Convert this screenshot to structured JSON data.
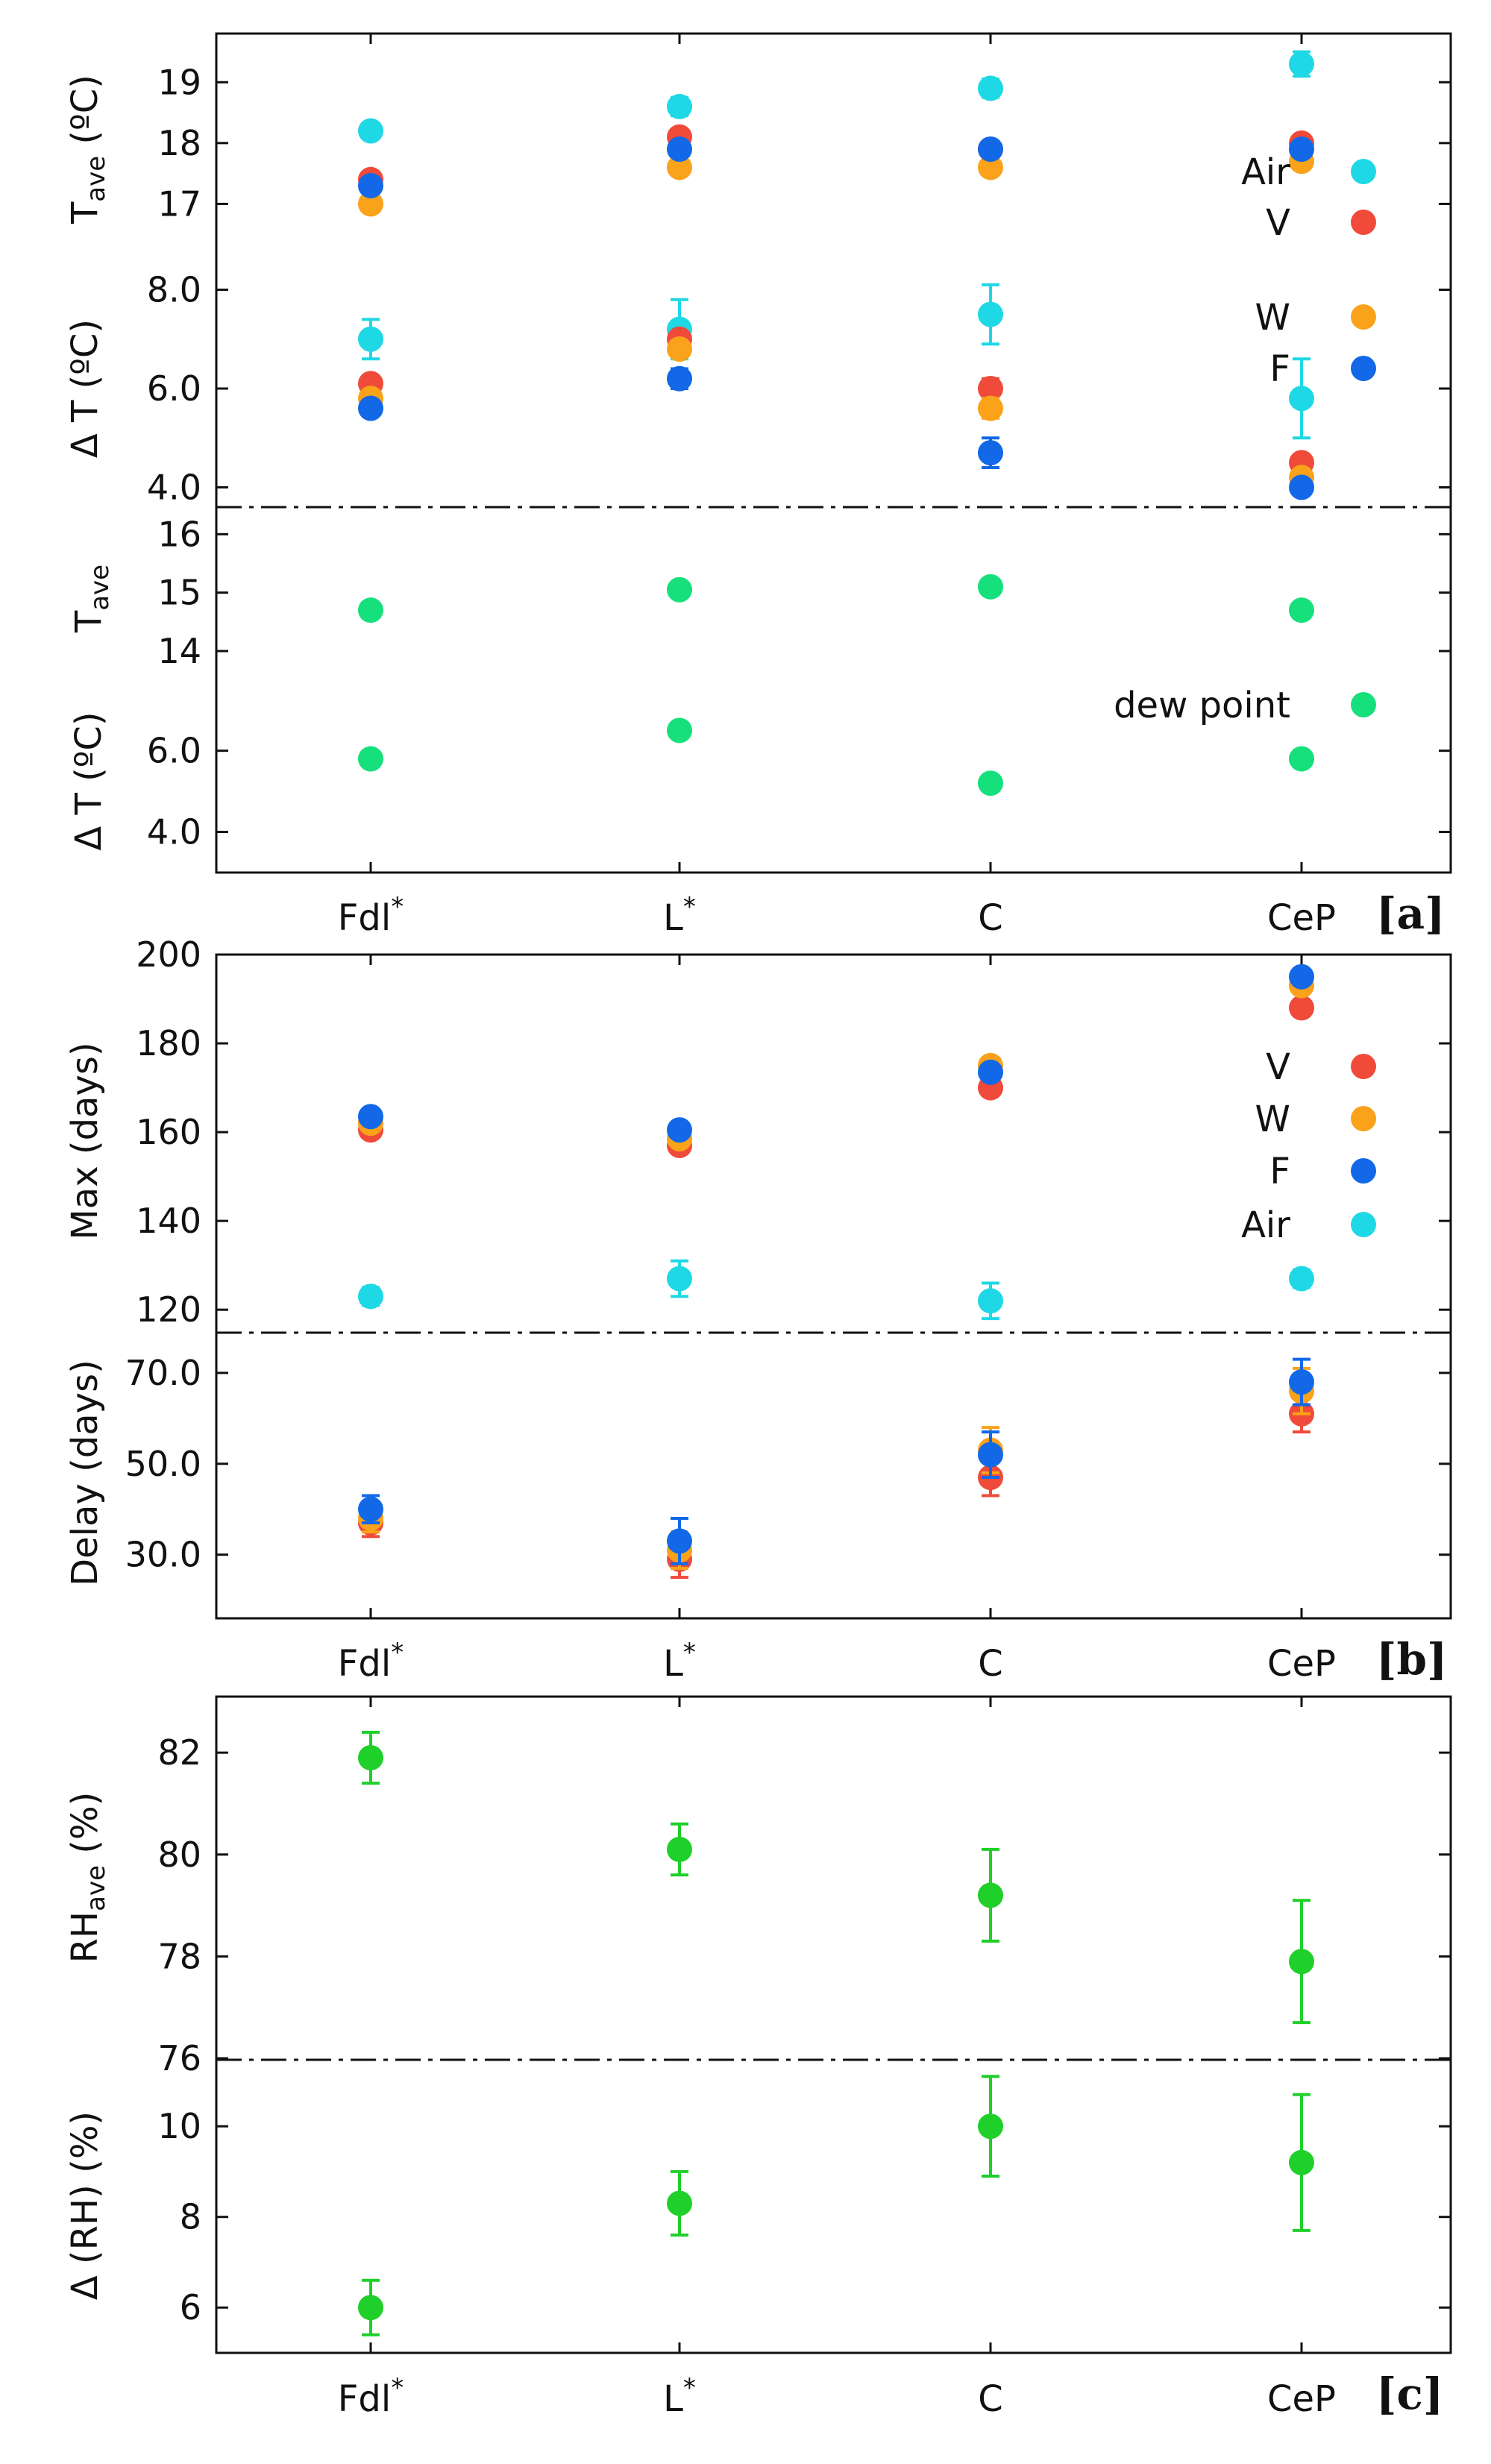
{
  "chart_data": [
    {
      "panel": "a",
      "type": "scatter",
      "categories": [
        "Fdl*",
        "L*",
        "C",
        "CeP"
      ],
      "panel_label": "[a]",
      "subplots": [
        {
          "id": "a_tave",
          "ylabel": "T",
          "ylabel_sub": "ave",
          "ylabel_unit": " (ºC)",
          "ylim": [
            16.0,
            19.8
          ],
          "yticks": [
            "17",
            "18",
            "19"
          ],
          "series": [
            {
              "name": "Air",
              "color": "#1fd8e6",
              "values": [
                18.2,
                18.6,
                18.9,
                19.3
              ],
              "err": [
                0.05,
                0.15,
                0.15,
                0.2
              ]
            },
            {
              "name": "V",
              "color": "#f04a3a",
              "values": [
                17.4,
                18.1,
                17.9,
                18.0
              ],
              "err": [
                0,
                0,
                0,
                0
              ]
            },
            {
              "name": "W",
              "color": "#f9a21a",
              "values": [
                17.0,
                17.6,
                17.6,
                17.7
              ],
              "err": [
                0,
                0,
                0,
                0
              ]
            },
            {
              "name": "F",
              "color": "#1268e6",
              "values": [
                17.3,
                17.9,
                17.9,
                17.9
              ],
              "err": [
                0,
                0,
                0,
                0
              ]
            }
          ]
        },
        {
          "id": "a_dt",
          "ylabel": "Δ T (ºC)",
          "ylim": [
            3.6,
            8.4
          ],
          "yticks": [
            "4.0",
            "6.0",
            "8.0"
          ],
          "series": [
            {
              "name": "Air",
              "color": "#1fd8e6",
              "values": [
                7.0,
                7.2,
                7.5,
                5.8
              ],
              "err": [
                0.4,
                0.6,
                0.6,
                0.8
              ]
            },
            {
              "name": "V",
              "color": "#f04a3a",
              "values": [
                6.1,
                7.0,
                6.0,
                4.5
              ],
              "err": [
                0,
                0,
                0.2,
                0
              ]
            },
            {
              "name": "W",
              "color": "#f9a21a",
              "values": [
                5.8,
                6.8,
                5.6,
                4.2
              ],
              "err": [
                0,
                0,
                0.2,
                0
              ]
            },
            {
              "name": "F",
              "color": "#1268e6",
              "values": [
                5.6,
                6.2,
                4.7,
                4.0
              ],
              "err": [
                0,
                0.2,
                0.3,
                0
              ]
            }
          ]
        },
        {
          "id": "a_dew_tave",
          "ylabel": "T",
          "ylabel_sub": "ave",
          "ylim": [
            13.4,
            16.4
          ],
          "yticks": [
            "14",
            "15",
            "16"
          ],
          "series": [
            {
              "name": "dew point",
              "color": "#16e07c",
              "values": [
                14.7,
                15.05,
                15.1,
                14.7
              ],
              "err": [
                0,
                0,
                0,
                0
              ]
            }
          ]
        },
        {
          "id": "a_dew_dt",
          "ylabel": "Δ T (ºC)",
          "ylim": [
            3.0,
            7.5
          ],
          "yticks": [
            "4.0",
            "6.0"
          ],
          "series": [
            {
              "name": "dew point",
              "color": "#16e07c",
              "values": [
                5.8,
                6.5,
                5.2,
                5.8
              ],
              "err": [
                0,
                0,
                0,
                0
              ]
            }
          ]
        }
      ],
      "legend": {
        "top": [
          "Air",
          "V"
        ],
        "middle": [
          "W",
          "F"
        ],
        "bottom": [
          "dew point"
        ]
      }
    },
    {
      "panel": "b",
      "type": "scatter",
      "categories": [
        "Fdl*",
        "L*",
        "C",
        "CeP"
      ],
      "panel_label": "[b]",
      "subplots": [
        {
          "id": "b_max",
          "ylabel": "Max (days)",
          "ylim": [
            116,
            200
          ],
          "yticks": [
            "120",
            "140",
            "160",
            "180",
            "200"
          ],
          "series": [
            {
              "name": "V",
              "color": "#f04a3a",
              "values": [
                160.5,
                157,
                170,
                188
              ],
              "err": [
                0,
                0,
                0,
                0
              ]
            },
            {
              "name": "W",
              "color": "#f9a21a",
              "values": [
                162,
                158.5,
                175,
                193
              ],
              "err": [
                0,
                0,
                1.5,
                0
              ]
            },
            {
              "name": "F",
              "color": "#1268e6",
              "values": [
                163.5,
                160.5,
                173.5,
                195
              ],
              "err": [
                0,
                0,
                0,
                0
              ]
            },
            {
              "name": "Air",
              "color": "#1fd8e6",
              "values": [
                123,
                127,
                122,
                127
              ],
              "err": [
                2,
                4,
                4,
                2
              ]
            }
          ]
        },
        {
          "id": "b_delay",
          "ylabel": "Delay (days)",
          "ylim": [
            16,
            80
          ],
          "yticks": [
            "30.0",
            "50.0",
            "70.0"
          ],
          "series": [
            {
              "name": "V",
              "color": "#f04a3a",
              "values": [
                37,
                29,
                47,
                61
              ],
              "err": [
                3,
                4,
                4,
                4
              ]
            },
            {
              "name": "W",
              "color": "#f9a21a",
              "values": [
                38,
                31,
                53,
                66
              ],
              "err": [
                3,
                4,
                5,
                5
              ]
            },
            {
              "name": "F",
              "color": "#1268e6",
              "values": [
                40,
                33,
                52,
                68
              ],
              "err": [
                3,
                5,
                5,
                5
              ]
            }
          ]
        }
      ],
      "legend": [
        "V",
        "W",
        "F",
        "Air"
      ]
    },
    {
      "panel": "c",
      "type": "scatter",
      "categories": [
        "Fdl*",
        "L*",
        "C",
        "CeP"
      ],
      "panel_label": "[c]",
      "subplots": [
        {
          "id": "c_rh",
          "ylabel": "RH",
          "ylabel_sub": "ave",
          "ylabel_unit": " (%)",
          "ylim": [
            76,
            83.1
          ],
          "yticks": [
            "76",
            "78",
            "80",
            "82"
          ],
          "series": [
            {
              "name": "RH",
              "color": "#1fcf2a",
              "values": [
                81.9,
                80.1,
                79.2,
                77.9
              ],
              "err": [
                0.5,
                0.5,
                0.9,
                1.2
              ]
            }
          ]
        },
        {
          "id": "c_drh",
          "ylabel": "Δ (RH) (%)",
          "ylim": [
            5.0,
            11.5
          ],
          "yticks": [
            "6",
            "8",
            "10"
          ],
          "series": [
            {
              "name": "RH",
              "color": "#1fcf2a",
              "values": [
                6.0,
                8.3,
                10.0,
                9.2
              ],
              "err": [
                0.6,
                0.7,
                1.1,
                1.5
              ]
            }
          ]
        }
      ]
    }
  ]
}
